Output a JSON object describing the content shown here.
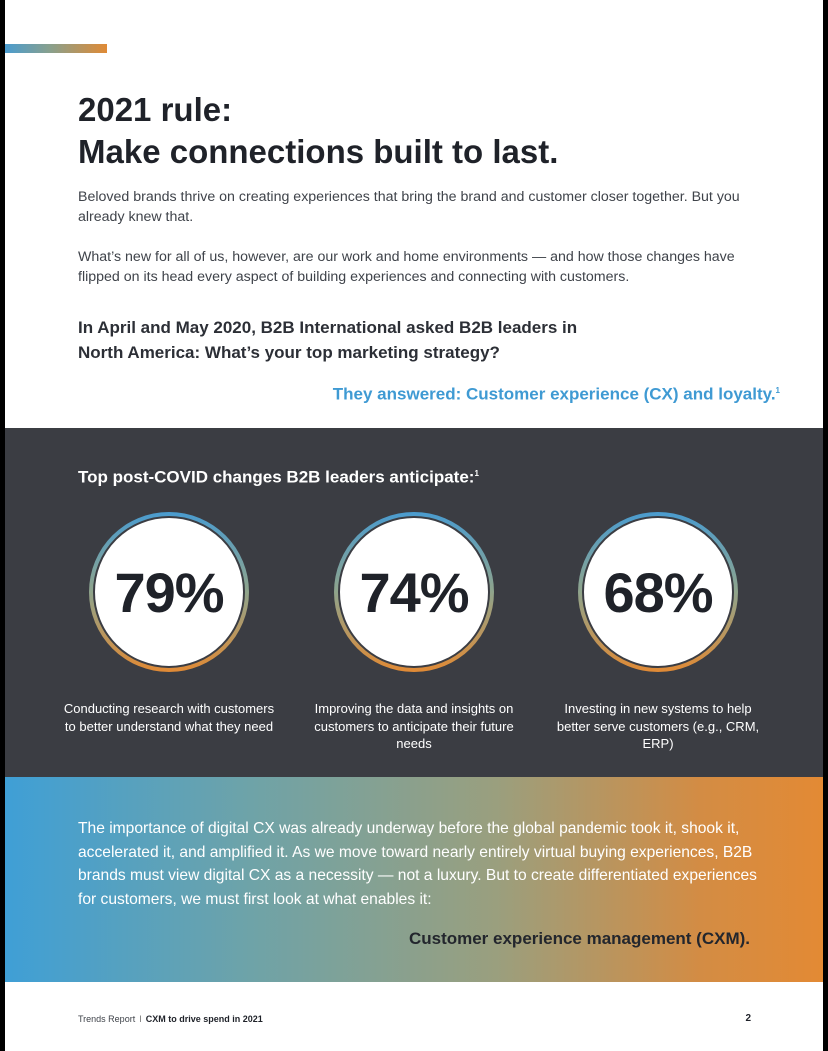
{
  "colors": {
    "accent_blue": "#3f9ad3",
    "accent_orange": "#e08a35",
    "dark_band": "#3b3d43"
  },
  "title": {
    "line1": "2021 rule:",
    "line2": "Make connections built to last."
  },
  "intro": {
    "p1": "Beloved brands thrive on creating experiences that bring the brand and customer closer together. But you already knew that.",
    "p2": "What’s new for all of us, however, are our work and home environments — and how those changes have flipped on its head every aspect of building experiences and connecting with customers."
  },
  "question": {
    "line1": "In April and May 2020, B2B International asked B2B leaders in",
    "line2": "North America: What’s your top marketing strategy?"
  },
  "answer": {
    "text": "They answered: Customer experience (CX) and loyalty.",
    "sup": "1"
  },
  "stats_section": {
    "heading": "Top post-COVID changes B2B leaders anticipate:",
    "heading_sup": "1",
    "stats": [
      {
        "value": "79%",
        "caption": "Conducting research with customers to better understand what they need"
      },
      {
        "value": "74%",
        "caption": "Improving the data and insights on customers to anticipate their future needs"
      },
      {
        "value": "68%",
        "caption": "Investing in new systems to help better serve customers (e.g., CRM, ERP)"
      }
    ]
  },
  "closing": {
    "paragraph": "The importance of digital CX was already underway before the global pandemic took it, shook it, accelerated it, and amplified it. As we move toward nearly entirely virtual buying experiences, B2B brands must view digital CX as a necessity — not a luxury. But to create differentiated experiences for customers, we must first look at what enables it:",
    "highlight": "Customer experience management (CXM)."
  },
  "footer": {
    "report": "Trends Report",
    "separator": "I",
    "subtitle": "CXM to drive spend in 2021",
    "page": "2"
  }
}
